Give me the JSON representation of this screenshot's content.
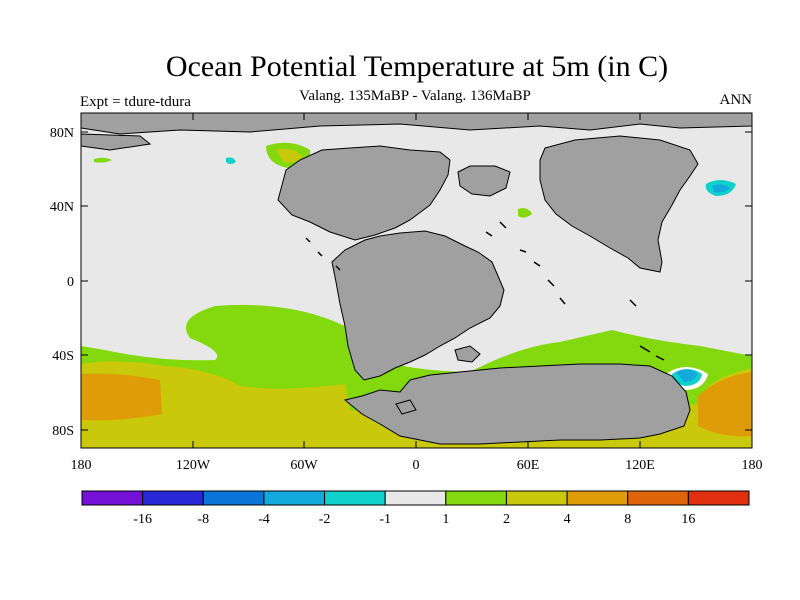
{
  "title": "Ocean Potential Temperature at 5m (in C)",
  "subtitle": "Valang.  135MaBP - Valang.  136MaBP",
  "left_label": "Expt = tdure-tdura",
  "right_label": "ANN",
  "x_ticks": [
    "180",
    "120W",
    "60W",
    "0",
    "60E",
    "120E",
    "180"
  ],
  "y_ticks": [
    "80N",
    "40N",
    "0",
    "40S",
    "80S"
  ],
  "colorbar": {
    "colors": [
      "#7410d8",
      "#2828d8",
      "#0a74d8",
      "#12aadc",
      "#10d0cc",
      "#e8e8e8",
      "#84d80e",
      "#cac80a",
      "#de9c08",
      "#e0640a",
      "#e03010"
    ],
    "labels": [
      "-16",
      "-8",
      "-4",
      "-2",
      "-1",
      "1",
      "2",
      "4",
      "8",
      "16"
    ]
  },
  "colors": {
    "land": "#a0a0a0",
    "ocean_neutral": "#e8e8e8",
    "frame": "#000000"
  },
  "chart_data": {
    "type": "heatmap",
    "title": "Ocean Potential Temperature at 5m (in C)",
    "subtitle": "Valang.  135MaBP - Valang.  136MaBP",
    "experiment": "Expt = tdure-tdura",
    "season": "ANN",
    "xlim": [
      -180,
      180
    ],
    "ylim": [
      -90,
      90
    ],
    "contour_levels": [
      -16,
      -8,
      -4,
      -2,
      -1,
      1,
      2,
      4,
      8,
      16
    ],
    "units": "C"
  }
}
